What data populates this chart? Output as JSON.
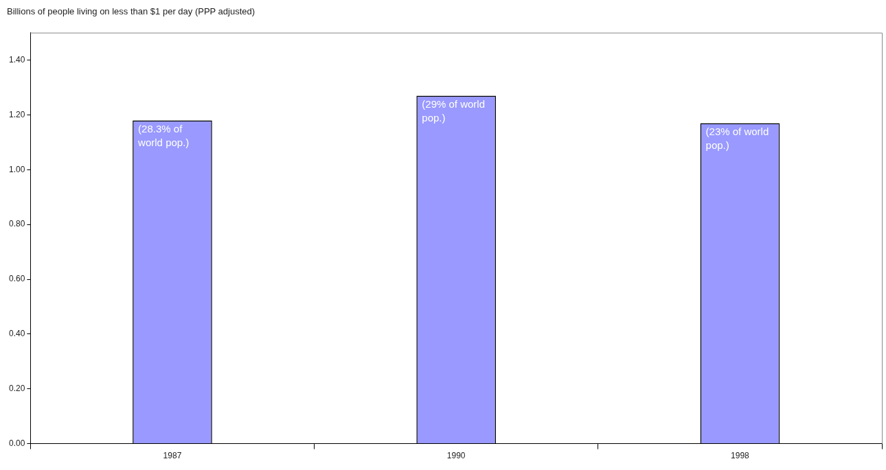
{
  "chart_data": {
    "type": "bar",
    "title": "Billions of people living on less than $1 per day (PPP adjusted)",
    "categories": [
      "1987",
      "1990",
      "1998"
    ],
    "values": [
      1.18,
      1.27,
      1.17
    ],
    "color": "#9999ff",
    "ylim": [
      0,
      1.5
    ],
    "yticks": [
      {
        "value": 0,
        "label": "0.00"
      },
      {
        "value": 0.2,
        "label": "0.20"
      },
      {
        "value": 0.4,
        "label": "0.40"
      },
      {
        "value": 0.6,
        "label": "0.60"
      },
      {
        "value": 0.8,
        "label": "0.80"
      },
      {
        "value": 1,
        "label": "1.00"
      },
      {
        "value": 1.2,
        "label": "1.20"
      },
      {
        "value": 1.4,
        "label": "1.40"
      }
    ],
    "grid": false,
    "legend": false,
    "annotations": [
      {
        "text": "(28.3% of world pop.)",
        "x": "1987",
        "y": 1.18
      },
      {
        "text": "(29% of world pop.)",
        "x": "1990",
        "y": 1.27
      },
      {
        "text": "(23% of world pop.)",
        "x": "1998",
        "y": 1.17
      }
    ]
  }
}
